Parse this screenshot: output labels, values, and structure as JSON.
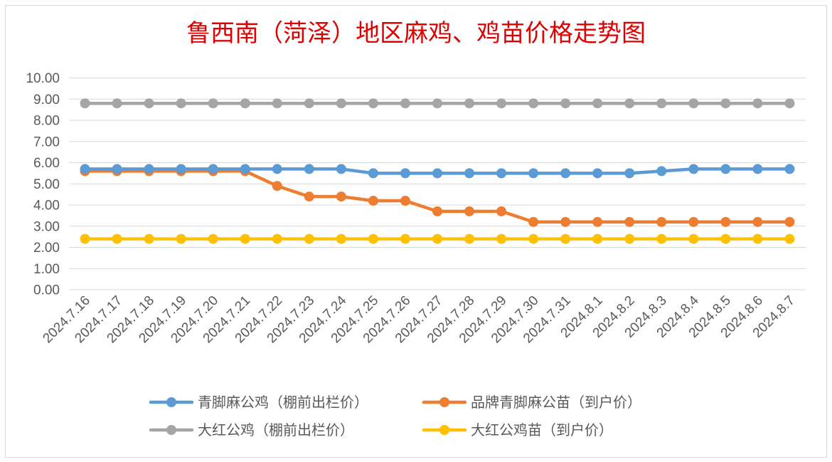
{
  "chart_data": {
    "type": "line",
    "title": "鲁西南（菏泽）地区麻鸡、鸡苗价格走势图",
    "xlabel": "",
    "ylabel": "",
    "ylim": [
      0,
      10
    ],
    "ytick_step": 1,
    "grid": true,
    "legend_position": "bottom",
    "title_color": "#e00000",
    "categories": [
      "2024.7.16",
      "2024.7.17",
      "2024.7.18",
      "2024.7.19",
      "2024.7.20",
      "2024.7.21",
      "2024.7.22",
      "2024.7.23",
      "2024.7.24",
      "2024.7.25",
      "2024.7.26",
      "2024.7.27",
      "2024.7.28",
      "2024.7.29",
      "2024.7.30",
      "2024.7.31",
      "2024.8.1",
      "2024.8.2",
      "2024.8.3",
      "2024.8.4",
      "2024.8.5",
      "2024.8.6",
      "2024.8.7"
    ],
    "yticks": [
      "0.00",
      "1.00",
      "2.00",
      "3.00",
      "4.00",
      "5.00",
      "6.00",
      "7.00",
      "8.00",
      "9.00",
      "10.00"
    ],
    "series": [
      {
        "name": "青脚麻公鸡（棚前出栏价）",
        "color": "#5b9bd5",
        "values": [
          5.7,
          5.7,
          5.7,
          5.7,
          5.7,
          5.7,
          5.7,
          5.7,
          5.7,
          5.5,
          5.5,
          5.5,
          5.5,
          5.5,
          5.5,
          5.5,
          5.5,
          5.5,
          5.6,
          5.7,
          5.7,
          5.7,
          5.7
        ]
      },
      {
        "name": "品牌青脚麻公苗（到户价）",
        "color": "#ed7d31",
        "values": [
          5.6,
          5.6,
          5.6,
          5.6,
          5.6,
          5.6,
          4.9,
          4.4,
          4.4,
          4.2,
          4.2,
          3.7,
          3.7,
          3.7,
          3.2,
          3.2,
          3.2,
          3.2,
          3.2,
          3.2,
          3.2,
          3.2,
          3.2
        ]
      },
      {
        "name": "大红公鸡（棚前出栏价）",
        "color": "#a5a5a5",
        "values": [
          8.8,
          8.8,
          8.8,
          8.8,
          8.8,
          8.8,
          8.8,
          8.8,
          8.8,
          8.8,
          8.8,
          8.8,
          8.8,
          8.8,
          8.8,
          8.8,
          8.8,
          8.8,
          8.8,
          8.8,
          8.8,
          8.8,
          8.8
        ]
      },
      {
        "name": "大红公鸡苗（到户价）",
        "color": "#ffc000",
        "values": [
          2.4,
          2.4,
          2.4,
          2.4,
          2.4,
          2.4,
          2.4,
          2.4,
          2.4,
          2.4,
          2.4,
          2.4,
          2.4,
          2.4,
          2.4,
          2.4,
          2.4,
          2.4,
          2.4,
          2.4,
          2.4,
          2.4,
          2.4
        ]
      }
    ]
  }
}
